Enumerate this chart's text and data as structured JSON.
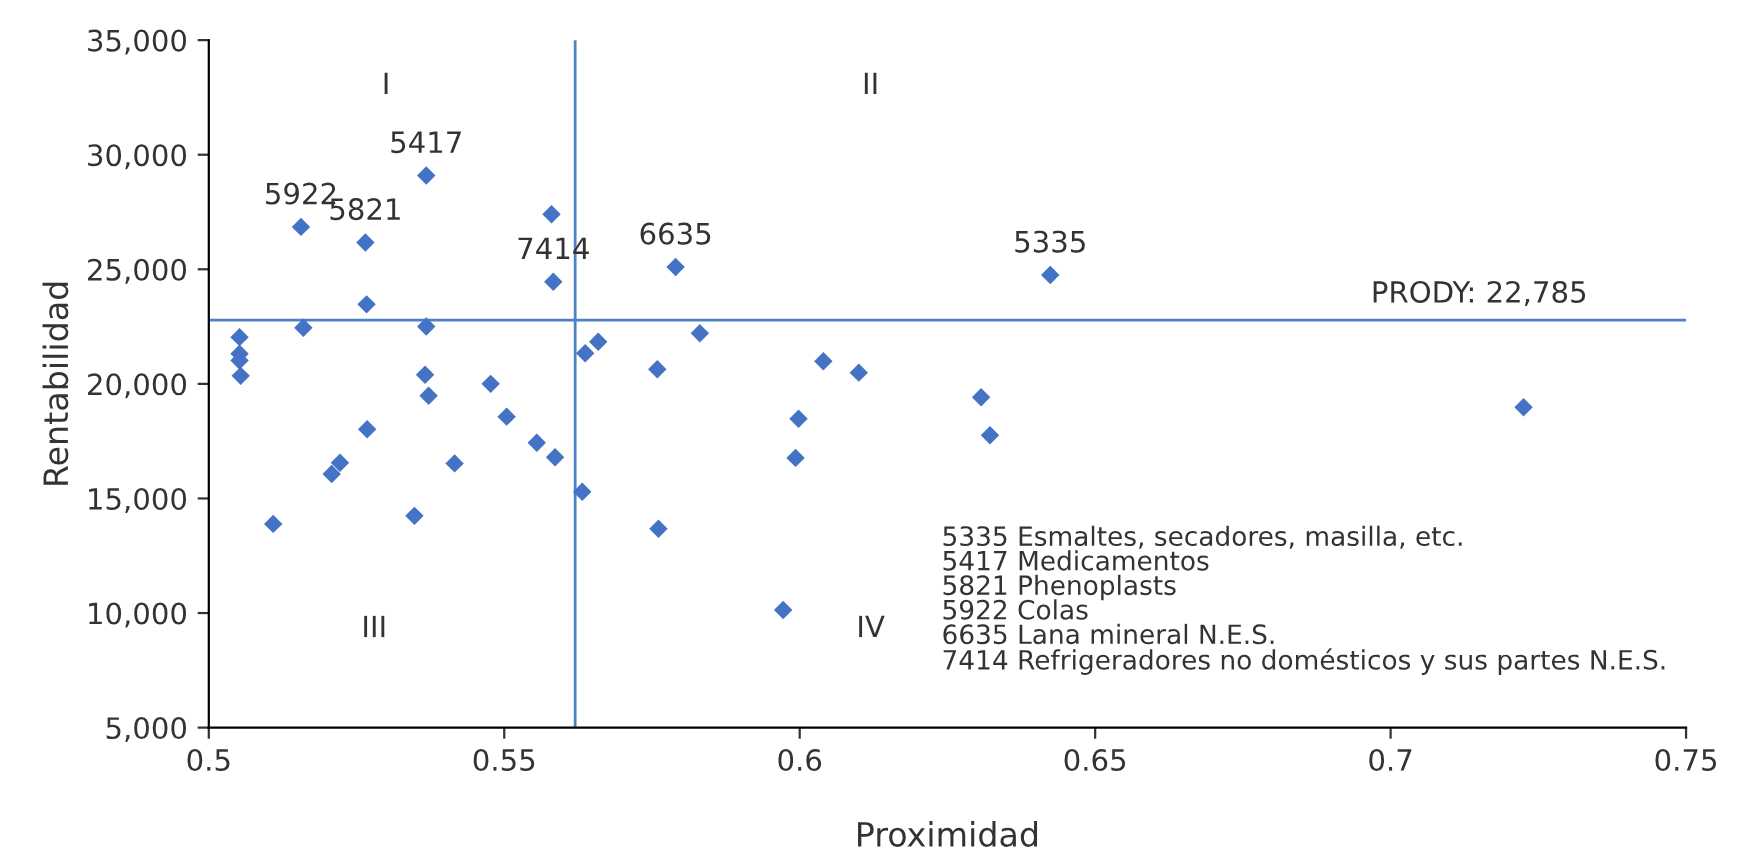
{
  "chart_data": {
    "type": "scatter",
    "xlabel": "Proximidad",
    "ylabel": "Rentabilidad",
    "marker": "diamond",
    "grid": false,
    "xlim": [
      0.5,
      0.75
    ],
    "xticks": [
      0.5,
      0.55,
      0.6,
      0.65,
      0.7,
      0.75
    ],
    "ylim": [
      5000,
      35000
    ],
    "yticks": [
      {
        "value": 5000,
        "label": "5,000"
      },
      {
        "value": 10000,
        "label": "10,000"
      },
      {
        "value": 15000,
        "label": "15,000"
      },
      {
        "value": 20000,
        "label": "20,000"
      },
      {
        "value": 25000,
        "label": "25,000"
      },
      {
        "value": 30000,
        "label": "30,000"
      },
      {
        "value": 35000,
        "label": "35,000"
      }
    ],
    "series": [
      {
        "color": "#4472c4",
        "x": [
          0.5052,
          0.5052,
          0.5052,
          0.5054,
          0.5156,
          0.516,
          0.5265,
          0.5267,
          0.5368,
          0.5368,
          0.5366,
          0.5372,
          0.5268,
          0.5222,
          0.5208,
          0.5109,
          0.5348,
          0.5416,
          0.5477,
          0.5504,
          0.5555,
          0.5586,
          0.5632,
          0.558,
          0.5583,
          0.5637,
          0.5659,
          0.579,
          0.5831,
          0.5759,
          0.5761,
          0.604,
          0.61,
          0.5998,
          0.5993,
          0.5972,
          0.6307,
          0.6322,
          0.6424,
          0.7225
        ],
        "values": [
          22040,
          21315,
          21020,
          20350,
          26850,
          22450,
          26170,
          23470,
          29090,
          22500,
          20400,
          19480,
          18020,
          16560,
          16070,
          13890,
          14240,
          16530,
          20000,
          18570,
          17430,
          16800,
          15290,
          27400,
          24460,
          21340,
          21840,
          25100,
          22210,
          20640,
          13680,
          20990,
          20490,
          18480,
          16770,
          10130,
          19420,
          17760,
          24750,
          18980
        ]
      }
    ],
    "ref_lines": [
      {
        "axis": "y",
        "value": 22785,
        "label": "PRODY: 22,785",
        "color": "#4f81c7"
      },
      {
        "axis": "x",
        "value": 0.562,
        "color": "#4f81c7"
      }
    ],
    "annotations": [
      {
        "text": "5922",
        "x": 0.5156,
        "y": 26850
      },
      {
        "text": "5821",
        "x": 0.5265,
        "y": 26170
      },
      {
        "text": "5417",
        "x": 0.5368,
        "y": 29090
      },
      {
        "text": "7414",
        "x": 0.5583,
        "y": 24460
      },
      {
        "text": "6635",
        "x": 0.579,
        "y": 25100
      },
      {
        "text": "5335",
        "x": 0.6424,
        "y": 24750
      },
      "I",
      "II",
      "III",
      "IV",
      "5335 Esmaltes, secadores, masilla, etc.\n5417 Medicamentos\n5821 Phenoplasts\n5922 Colas\n6635 Lana mineral N.E.S.\n7414 Refrigeradores no domésticos y sus partes N.E.S."
    ]
  }
}
